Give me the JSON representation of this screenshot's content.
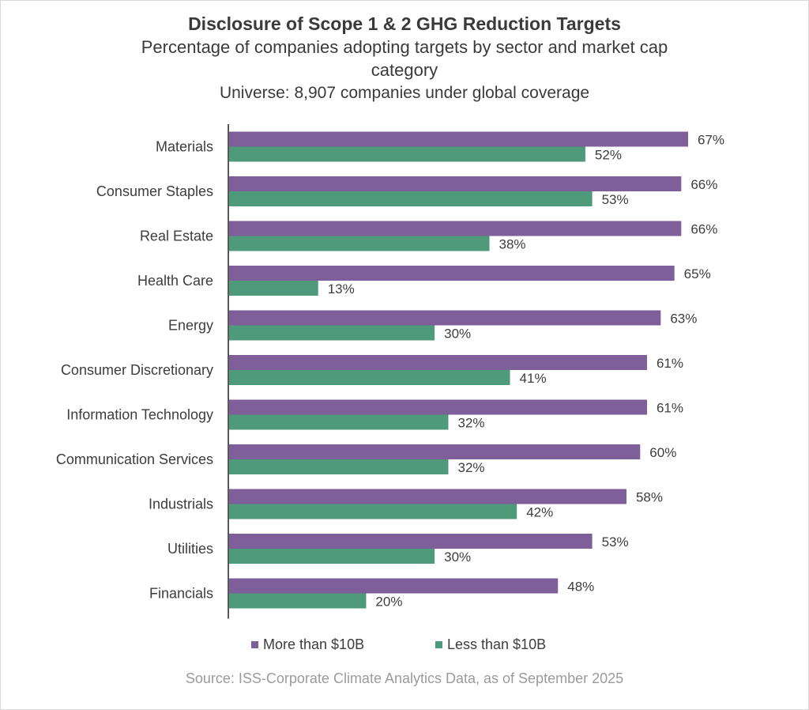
{
  "colors": {
    "more_than_10b": "#7e5f9a",
    "less_than_10b": "#4e9a7a",
    "axis": "#5a5a5a",
    "source_text": "#9b9b9b"
  },
  "chart_data": {
    "type": "bar",
    "orientation": "horizontal",
    "title": "Disclosure of Scope 1 & 2 GHG Reduction Targets",
    "subtitle": "Percentage of companies adopting targets by sector and market cap category",
    "universe": "Universe: 8,907 companies under global coverage",
    "categories": [
      "Materials",
      "Consumer Staples",
      "Real Estate",
      "Health Care",
      "Energy",
      "Consumer Discretionary",
      "Information Technology",
      "Communication Services",
      "Industrials",
      "Utilities",
      "Financials"
    ],
    "series": [
      {
        "name": "More than $10B",
        "values": [
          67,
          66,
          66,
          65,
          63,
          61,
          61,
          60,
          58,
          53,
          48
        ],
        "labels": [
          "67%",
          "66%",
          "66%",
          "65%",
          "63%",
          "61%",
          "61%",
          "60%",
          "58%",
          "53%",
          "48%"
        ]
      },
      {
        "name": "Less than $10B",
        "values": [
          52,
          53,
          38,
          13,
          30,
          41,
          32,
          32,
          42,
          30,
          20
        ],
        "labels": [
          "52%",
          "53%",
          "38%",
          "13%",
          "30%",
          "41%",
          "32%",
          "32%",
          "42%",
          "30%",
          "20%"
        ]
      }
    ],
    "xlim": [
      0,
      68
    ],
    "grid": false,
    "legend_position": "bottom",
    "source": "Source: ISS-Corporate Climate Analytics Data, as of September 2025"
  }
}
